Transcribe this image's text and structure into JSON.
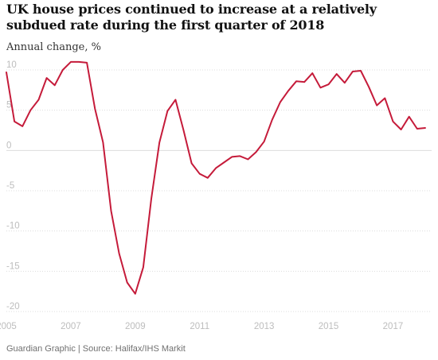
{
  "title": "UK house prices continued to increase at a relatively subdued rate during the first quarter of 2018",
  "subtitle": "Annual change, %",
  "footer": "Guardian Graphic | Source: Halifax/IHS Markit",
  "colors": {
    "line": "#c51b3a",
    "grid": "#dcdcdc",
    "tick": "#bdbdbd"
  },
  "chart_data": {
    "type": "line",
    "title": "UK house prices continued to increase at a relatively subdued rate during the first quarter of 2018",
    "ylabel": "Annual change, %",
    "xlabel": "",
    "grid": true,
    "legend": "none",
    "xlim": [
      2005.0,
      2018.2
    ],
    "ylim": [
      -20,
      10
    ],
    "x_ticks": [
      2005,
      2007,
      2009,
      2011,
      2013,
      2015,
      2017
    ],
    "y_ticks": [
      10,
      5,
      0,
      -5,
      -10,
      -15,
      -20
    ],
    "series": [
      {
        "x": [
          2005.0,
          2005.25,
          2005.5,
          2005.75,
          2006.0,
          2006.25,
          2006.5,
          2006.75,
          2007.0,
          2007.25,
          2007.5,
          2007.75,
          2008.0,
          2008.25,
          2008.5,
          2008.75,
          2009.0,
          2009.25,
          2009.5,
          2009.75,
          2010.0,
          2010.25,
          2010.5,
          2010.75,
          2011.0,
          2011.25,
          2011.5,
          2011.75,
          2012.0,
          2012.25,
          2012.5,
          2012.75,
          2013.0,
          2013.25,
          2013.5,
          2013.75,
          2014.0,
          2014.25,
          2014.5,
          2014.75,
          2015.0,
          2015.25,
          2015.5,
          2015.75,
          2016.0,
          2016.25,
          2016.5,
          2016.75,
          2017.0,
          2017.25,
          2017.5,
          2017.75,
          2018.0
        ],
        "y": [
          9.7,
          3.6,
          3.0,
          5.0,
          6.3,
          9.0,
          8.1,
          10.0,
          11.0,
          11.0,
          10.9,
          5.2,
          1.0,
          -7.5,
          -12.8,
          -16.4,
          -17.8,
          -14.5,
          -6.0,
          1.0,
          4.9,
          6.3,
          2.5,
          -1.6,
          -2.9,
          -3.4,
          -2.2,
          -1.5,
          -0.8,
          -0.7,
          -1.1,
          -0.2,
          1.1,
          3.8,
          6.0,
          7.4,
          8.6,
          8.5,
          9.6,
          7.8,
          8.2,
          9.5,
          8.4,
          9.8,
          9.9,
          7.9,
          5.6,
          6.5,
          3.6,
          2.6,
          4.2,
          2.7,
          2.8
        ]
      }
    ]
  }
}
